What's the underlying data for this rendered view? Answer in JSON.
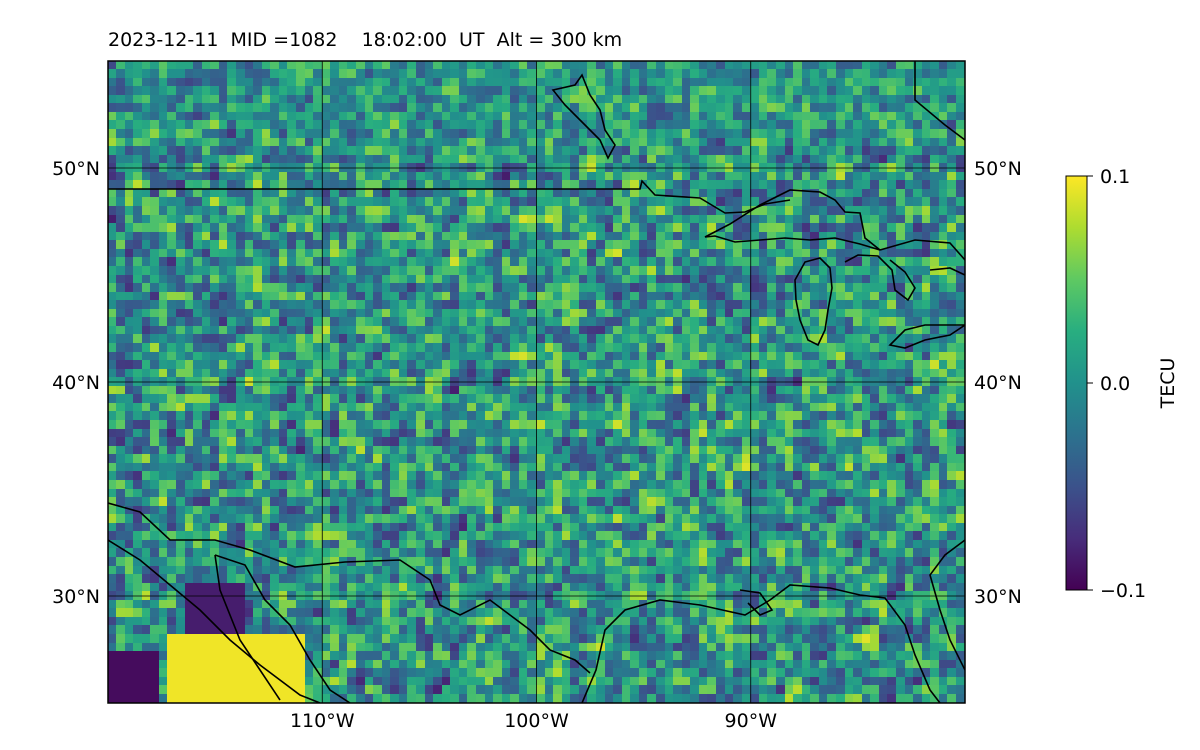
{
  "title": "2023-12-11  MID =1082    18:02:00  UT  Alt = 300 km",
  "map": {
    "lon_range": [
      -120,
      -80
    ],
    "lat_range": [
      25,
      55
    ],
    "lon_gridlines": [
      -110,
      -100,
      -90
    ],
    "lat_gridlines": [
      30,
      40,
      50
    ],
    "lon_tick_labels": [
      "110°W",
      "100°W",
      "90°W"
    ],
    "lat_tick_labels": [
      "30°N",
      "40°N",
      "50°N"
    ],
    "field": "detrended TEC perturbation map",
    "colormap": "viridis",
    "coastlines": true
  },
  "colorbar": {
    "label": "TECU",
    "min": -0.1,
    "max": 0.1,
    "ticks": [
      0.1,
      0.0,
      -0.1
    ],
    "tick_labels": [
      "0.1",
      "0.0",
      "−0.1"
    ]
  },
  "colors": {
    "viridis_low": "#440154",
    "viridis_mid": "#21918c",
    "viridis_high": "#fde725",
    "gridline": "#000000",
    "coastline": "#000000"
  }
}
